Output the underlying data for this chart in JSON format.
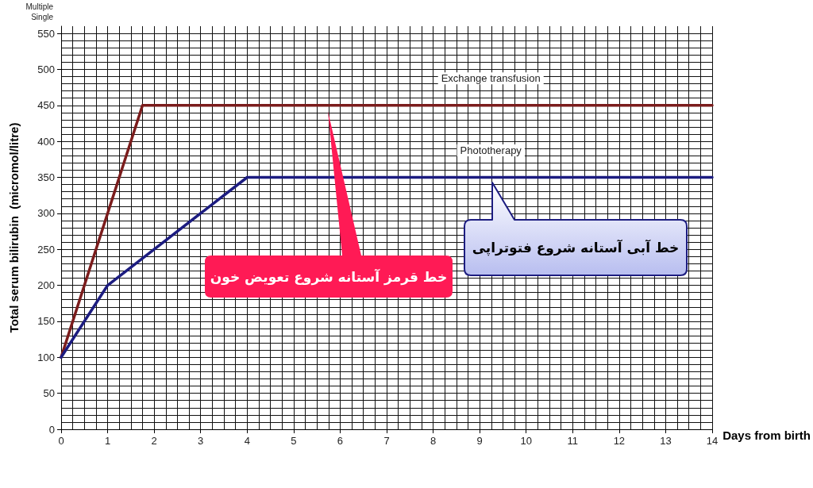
{
  "chart_data": {
    "type": "line",
    "xlabel": "Days from birth",
    "ylabel": "Total serum bilirubin  (micromol/litre)",
    "xlim": [
      0,
      14
    ],
    "xticks": [
      0,
      1,
      2,
      3,
      4,
      5,
      6,
      7,
      8,
      9,
      10,
      11,
      12,
      13,
      14
    ],
    "ylim": [
      0,
      560
    ],
    "yticks": [
      0,
      50,
      100,
      150,
      200,
      250,
      300,
      350,
      400,
      450,
      500,
      550
    ],
    "series": [
      {
        "name": "Exchange transfusion",
        "color": "#7b1c1c",
        "x": [
          0,
          1.75,
          14
        ],
        "values": [
          100,
          450,
          450
        ]
      },
      {
        "name": "Phototherapy",
        "color": "#1c1c80",
        "x": [
          0,
          1,
          4,
          14
        ],
        "values": [
          100,
          200,
          350,
          350
        ]
      }
    ],
    "annotations": [
      "خط قرمز آستانه شروع تعویض خون",
      "خط آبی آستانه شروع فتوتراپی",
      "Multiple",
      "Single"
    ],
    "grid": true,
    "marker": "none",
    "line_style": "solid",
    "legend": false
  }
}
